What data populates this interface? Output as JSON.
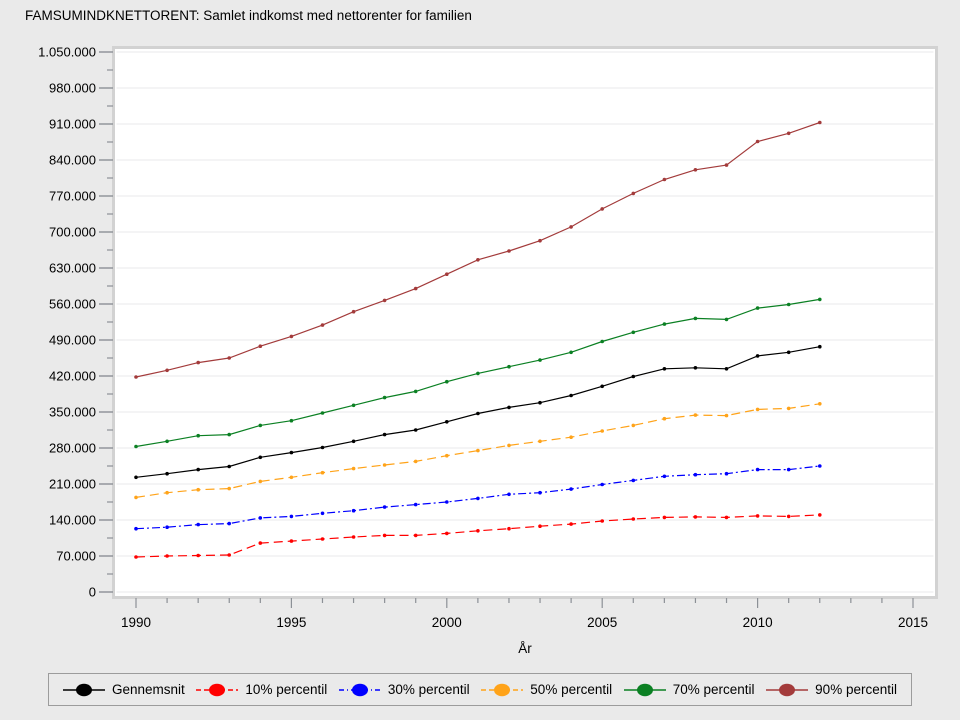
{
  "title": "FAMSUMINDKNETTORENT: Samlet indkomst med nettorenter for familien",
  "colors": {
    "page_background": "#EAEAEA",
    "plot_background": "#FFFFFF",
    "plot_frame": "#D2D2D2",
    "gridline": "#E9E9EB",
    "tick": "#8C9096",
    "legend_border": "#9C9C9C",
    "text": "#000000"
  },
  "chart_data": {
    "type": "line",
    "title": "FAMSUMINDKNETTORENT: Samlet indkomst med nettorenter for familien",
    "xlabel": "År",
    "ylabel": "",
    "x": [
      1990,
      1991,
      1992,
      1993,
      1994,
      1995,
      1996,
      1997,
      1998,
      1999,
      2000,
      2001,
      2002,
      2003,
      2004,
      2005,
      2006,
      2007,
      2008,
      2009,
      2010,
      2011,
      2012
    ],
    "series": [
      {
        "name": "Gennemsnit",
        "color": "#000000",
        "dash": "solid",
        "values": [
          223000,
          230000,
          238000,
          244000,
          262000,
          271000,
          281000,
          293000,
          306000,
          315000,
          331000,
          347000,
          359000,
          368000,
          382000,
          400000,
          419000,
          434000,
          436000,
          434000,
          459000,
          466000,
          477000
        ]
      },
      {
        "name": "10% percentil",
        "color": "#FF0000",
        "dash": "dashed",
        "values": [
          68000,
          70000,
          71000,
          72000,
          95000,
          99000,
          103000,
          107000,
          110000,
          110000,
          114000,
          119000,
          123000,
          128000,
          132000,
          138000,
          142000,
          145000,
          146000,
          145000,
          148000,
          147000,
          150000
        ]
      },
      {
        "name": "30% percentil",
        "color": "#0000FF",
        "dash": "dashdot",
        "values": [
          123000,
          126000,
          131000,
          133000,
          144000,
          147000,
          153000,
          158000,
          165000,
          170000,
          175000,
          182000,
          190000,
          193000,
          200000,
          209000,
          217000,
          225000,
          228000,
          230000,
          238000,
          238000,
          245000
        ]
      },
      {
        "name": "50% percentil",
        "color": "#FFA319",
        "dash": "dashed",
        "values": [
          184000,
          193000,
          199000,
          201000,
          215000,
          223000,
          232000,
          240000,
          247000,
          254000,
          265000,
          275000,
          285000,
          293000,
          301000,
          313000,
          324000,
          337000,
          344000,
          343000,
          355000,
          357000,
          366000
        ]
      },
      {
        "name": "70% percentil",
        "color": "#0B8023",
        "dash": "solid",
        "values": [
          283000,
          293000,
          304000,
          306000,
          324000,
          333000,
          348000,
          363000,
          378000,
          390000,
          409000,
          425000,
          438000,
          451000,
          466000,
          487000,
          505000,
          521000,
          532000,
          530000,
          552000,
          559000,
          569000
        ]
      },
      {
        "name": "90% percentil",
        "color": "#A33B3B",
        "dash": "solid",
        "values": [
          418000,
          431000,
          446000,
          455000,
          478000,
          497000,
          519000,
          545000,
          567000,
          590000,
          618000,
          646000,
          663000,
          683000,
          710000,
          745000,
          775000,
          802000,
          821000,
          830000,
          876000,
          892000,
          913000
        ]
      }
    ],
    "ylim": [
      0,
      1050000
    ],
    "y_major_step": 70000,
    "y_minor_step": 35000,
    "y_tick_labels": [
      "0",
      "70.000",
      "140.000",
      "210.000",
      "280.000",
      "350.000",
      "420.000",
      "490.000",
      "560.000",
      "630.000",
      "700.000",
      "770.000",
      "840.000",
      "910.000",
      "980.000",
      "1.050.000"
    ],
    "x_major_ticks": [
      1990,
      1995,
      2000,
      2005,
      2010,
      2015
    ],
    "x_tick_labels": [
      "1990",
      "1995",
      "2000",
      "2005",
      "2010",
      "2015"
    ],
    "x_minor_tick_every": 1,
    "x_axis_year_range": [
      1990,
      2015
    ],
    "grid": "horizontal-major",
    "legend_position": "bottom"
  }
}
